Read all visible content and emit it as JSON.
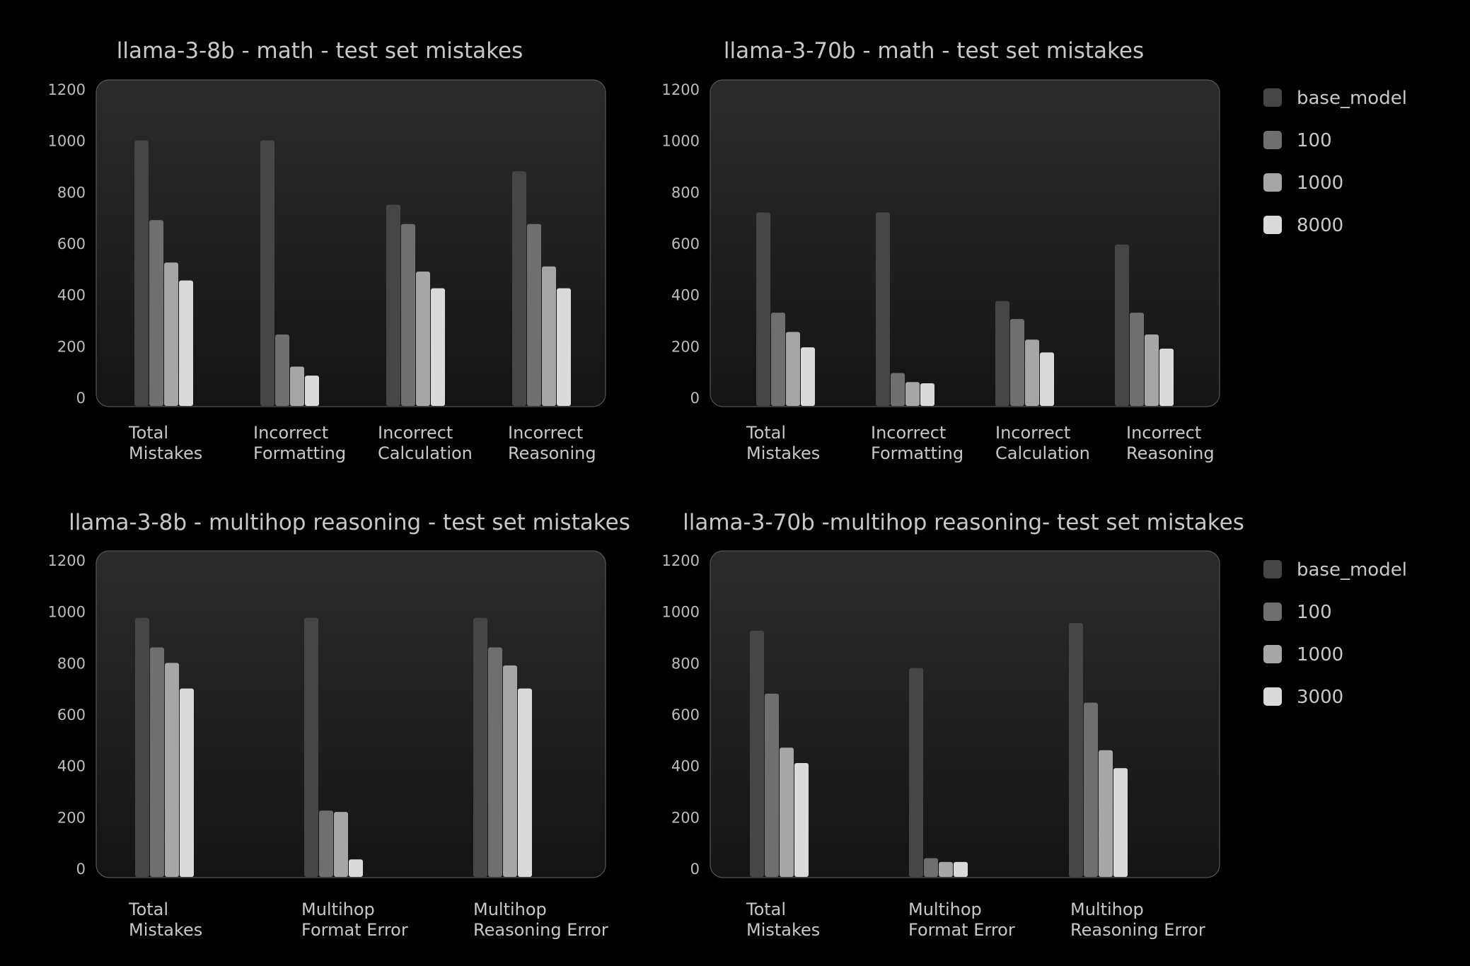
{
  "chart_data": [
    {
      "type": "bar",
      "title": "llama-3-8b - math - test set mistakes",
      "categories": [
        [
          "Total",
          "Mistakes"
        ],
        [
          "Incorrect",
          "Formatting"
        ],
        [
          "Incorrect",
          "Calculation"
        ],
        [
          "Incorrect",
          "Reasoning"
        ]
      ],
      "yticks": [
        "0",
        "200",
        "400",
        "600",
        "800",
        "1000",
        "1200"
      ],
      "ylim": [
        0,
        1200
      ],
      "series": [
        {
          "name": "base_model",
          "values": [
            1000,
            1000,
            750,
            880
          ]
        },
        {
          "name": "100",
          "values": [
            690,
            245,
            675,
            675
          ]
        },
        {
          "name": "1000",
          "values": [
            525,
            120,
            490,
            510
          ]
        },
        {
          "name": "8000",
          "values": [
            455,
            85,
            425,
            425
          ]
        }
      ]
    },
    {
      "type": "bar",
      "title": "llama-3-70b - math - test set mistakes",
      "categories": [
        [
          "Total",
          "Mistakes"
        ],
        [
          "Incorrect",
          "Formatting"
        ],
        [
          "Incorrect",
          "Calculation"
        ],
        [
          "Incorrect",
          "Reasoning"
        ]
      ],
      "yticks": [
        "0",
        "200",
        "400",
        "600",
        "800",
        "1000",
        "1200"
      ],
      "ylim": [
        0,
        1200
      ],
      "series": [
        {
          "name": "base_model",
          "values": [
            720,
            720,
            375,
            595
          ]
        },
        {
          "name": "100",
          "values": [
            330,
            95,
            305,
            330
          ]
        },
        {
          "name": "1000",
          "values": [
            255,
            60,
            225,
            245
          ]
        },
        {
          "name": "8000",
          "values": [
            195,
            55,
            175,
            190
          ]
        }
      ]
    },
    {
      "type": "bar",
      "title": "llama-3-8b - multihop reasoning - test set mistakes",
      "categories": [
        [
          "Total",
          "Mistakes"
        ],
        [
          "Multihop",
          "Format Error"
        ],
        [
          "Multihop",
          "Reasoning Error"
        ]
      ],
      "yticks": [
        "0",
        "200",
        "400",
        "600",
        "800",
        "1000",
        "1200"
      ],
      "ylim": [
        0,
        1200
      ],
      "series": [
        {
          "name": "base_model",
          "values": [
            975,
            975,
            975
          ]
        },
        {
          "name": "100",
          "values": [
            860,
            225,
            860
          ]
        },
        {
          "name": "1000",
          "values": [
            800,
            220,
            790
          ]
        },
        {
          "name": "3000",
          "values": [
            700,
            35,
            700
          ]
        }
      ]
    },
    {
      "type": "bar",
      "title": "llama-3-70b -multihop reasoning- test set mistakes",
      "categories": [
        [
          "Total",
          "Mistakes"
        ],
        [
          "Multihop",
          "Format Error"
        ],
        [
          "Multihop",
          "Reasoning Error"
        ]
      ],
      "yticks": [
        "0",
        "200",
        "400",
        "600",
        "800",
        "1000",
        "1200"
      ],
      "ylim": [
        0,
        1200
      ],
      "series": [
        {
          "name": "base_model",
          "values": [
            925,
            780,
            955
          ]
        },
        {
          "name": "100",
          "values": [
            680,
            40,
            645
          ]
        },
        {
          "name": "1000",
          "values": [
            470,
            25,
            460
          ]
        },
        {
          "name": "3000",
          "values": [
            410,
            25,
            390
          ]
        }
      ]
    }
  ],
  "legends": [
    {
      "entries": [
        "base_model",
        "100",
        "1000",
        "8000"
      ]
    },
    {
      "entries": [
        "base_model",
        "100",
        "1000",
        "3000"
      ]
    }
  ],
  "colors": {
    "series": [
      "#464646",
      "#6f6f6f",
      "#a6a6a6",
      "#dadada"
    ],
    "text": "#c8c8c8",
    "tick": "#bdbdbd",
    "panel_top": "#2b2b2b",
    "panel_bottom": "#141414",
    "panel_border": "#555555"
  }
}
